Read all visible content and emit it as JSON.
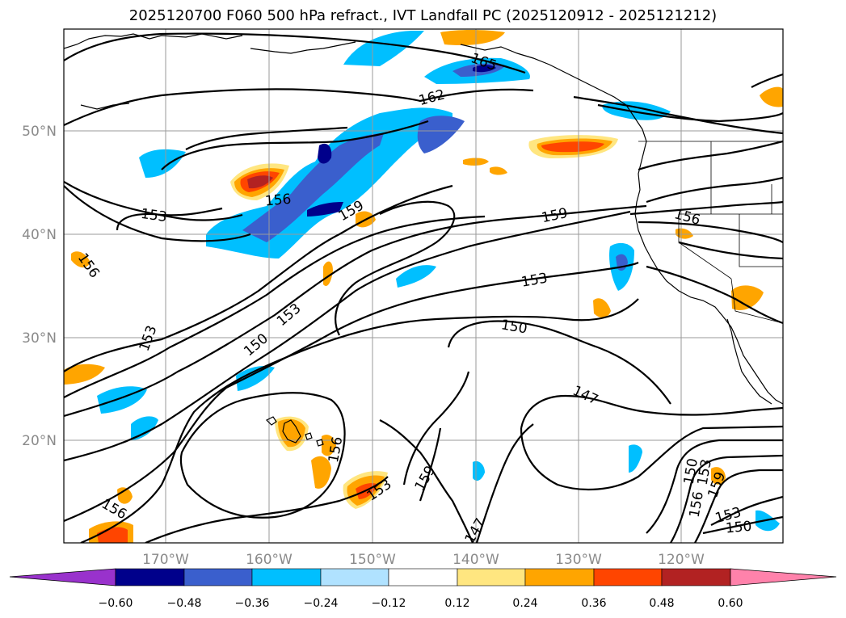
{
  "title": "2025120700 F060 500 hPa refract., IVT Landfall PC (2025120912 - 2025121212)",
  "colorbar": {
    "tick_labels": [
      "−0.60",
      "−0.48",
      "−0.36",
      "−0.24",
      "−0.12",
      "0.12",
      "0.24",
      "0.36",
      "0.48",
      "0.60"
    ],
    "colors": [
      "#9932cc",
      "#00008b",
      "#3a5fcd",
      "#00bfff",
      "#b0e2ff",
      "#ffffff",
      "#ffe680",
      "#ffa500",
      "#ff4500",
      "#b22222",
      "#ff82ab"
    ]
  },
  "lon_labels": [
    "170°W",
    "160°W",
    "150°W",
    "140°W",
    "130°W",
    "120°W"
  ],
  "lat_labels": [
    "50°N",
    "40°N",
    "30°N",
    "20°N"
  ],
  "contour_labels": [
    "165",
    "162",
    "156",
    "159",
    "153",
    "156",
    "159",
    "153",
    "150",
    "153",
    "150",
    "147",
    "153",
    "156",
    "153",
    "159",
    "156",
    "156",
    "150",
    "153",
    "156",
    "159",
    "153",
    "150",
    "147"
  ]
}
